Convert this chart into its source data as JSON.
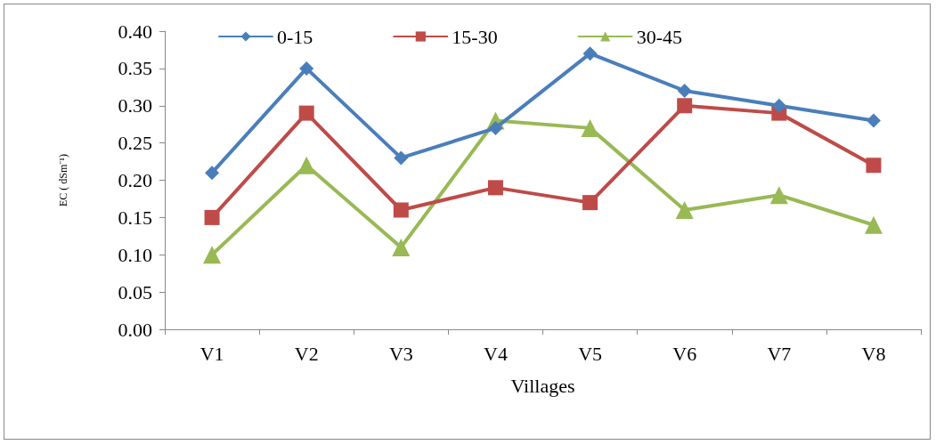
{
  "chart_data": {
    "type": "line",
    "xlabel": "Villages",
    "ylabel": "EC ( dSm⁻¹)",
    "categories": [
      "V1",
      "V2",
      "V3",
      "V4",
      "V5",
      "V6",
      "V7",
      "V8"
    ],
    "series": [
      {
        "name": "0-15",
        "color": "#4a7ebb",
        "marker": "diamond",
        "values": [
          0.21,
          0.35,
          0.23,
          0.27,
          0.37,
          0.32,
          0.3,
          0.28
        ]
      },
      {
        "name": "15-30",
        "color": "#be4b48",
        "marker": "square",
        "values": [
          0.15,
          0.29,
          0.16,
          0.19,
          0.17,
          0.3,
          0.29,
          0.22
        ]
      },
      {
        "name": "30-45",
        "color": "#98b954",
        "marker": "triangle",
        "values": [
          0.1,
          0.22,
          0.11,
          0.28,
          0.27,
          0.16,
          0.18,
          0.14
        ]
      }
    ],
    "ylim": [
      0,
      0.4
    ],
    "yticks": [
      {
        "value": 0,
        "label": "0.00"
      },
      0.05,
      {
        "value": 0.1,
        "label": "0.10"
      },
      0.15,
      {
        "value": 0.2,
        "label": "0.20"
      },
      0.25,
      {
        "value": 0.3,
        "label": "0.30"
      },
      0.35,
      {
        "value": 0.4,
        "label": "0.40"
      }
    ],
    "grid": false,
    "legend": "top",
    "line_style": "solid"
  }
}
